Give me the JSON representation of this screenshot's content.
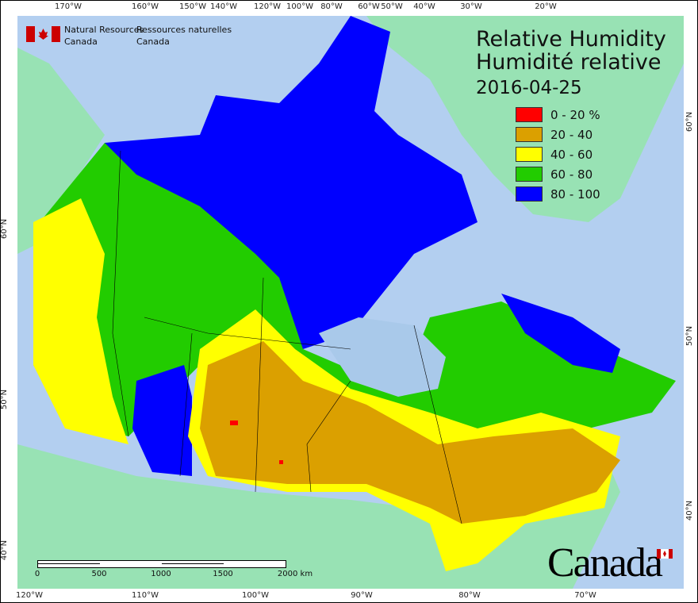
{
  "header": {
    "agency_en": "Natural Resources",
    "agency_en_2": "Canada",
    "agency_fr": "Ressources naturelles",
    "agency_fr_2": "Canada"
  },
  "title": {
    "line1": "Relative Humidity",
    "line2": "Humidité relative",
    "date": "2016-04-25"
  },
  "legend": [
    {
      "label": "0 - 20 %",
      "color": "#ff0000"
    },
    {
      "label": "20 - 40",
      "color": "#dba000"
    },
    {
      "label": "40 - 60",
      "color": "#ffff00"
    },
    {
      "label": "60 - 80",
      "color": "#22cc00"
    },
    {
      "label": "80 - 100",
      "color": "#0000ff"
    }
  ],
  "colors": {
    "ocean": "#b3cff0",
    "land": "#98e2b4",
    "lakes": "#a9c9ea"
  },
  "axes": {
    "top": [
      "170°W",
      "160°W",
      "150°W",
      "140°W",
      "120°W",
      "100°W",
      "80°W",
      "60°W",
      "50°W",
      "40°W",
      "30°W",
      "20°W"
    ],
    "bottom": [
      "120°W",
      "110°W",
      "100°W",
      "90°W",
      "80°W",
      "70°W"
    ],
    "left": [
      "60°N",
      "50°N",
      "40°N"
    ],
    "right": [
      "60°N",
      "50°N",
      "40°N"
    ]
  },
  "scale_bar": {
    "labels": [
      "0",
      "500",
      "1000",
      "1500",
      "2000 km"
    ]
  },
  "wordmark": "Canada"
}
